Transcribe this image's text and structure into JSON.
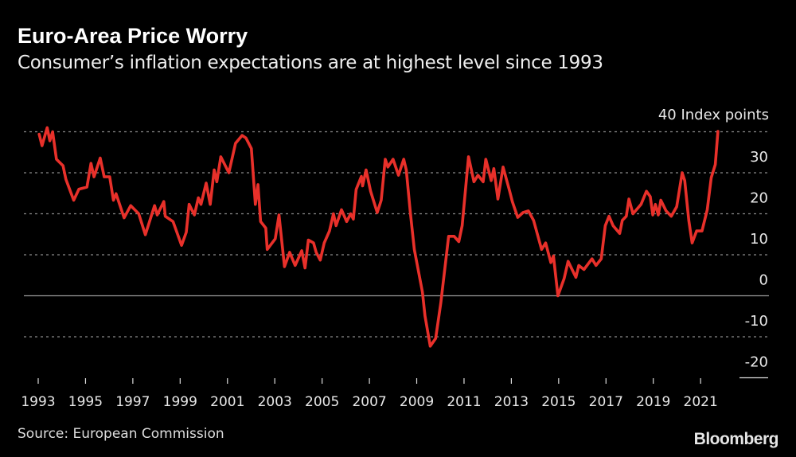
{
  "header": {
    "title": "Euro-Area Price Worry",
    "subtitle": "Consumer’s inflation expectations are at highest level since 1993"
  },
  "footer": {
    "source": "Source: European Commission",
    "brand": "Bloomberg"
  },
  "chart_data": {
    "type": "line",
    "title": "Euro-Area Price Worry",
    "subtitle": "Consumer’s inflation expectations are at highest level since 1993",
    "ylabel": "Index points",
    "unit_label": "40 Index points",
    "ylim": [
      -20,
      40
    ],
    "xlim": [
      1993,
      2021.8
    ],
    "yticks": [
      40,
      30,
      20,
      10,
      0,
      -10,
      -20
    ],
    "ytick_labels": [
      "40",
      "30",
      "20",
      "10",
      "0",
      "-10",
      "-20"
    ],
    "xticks": [
      1993,
      1995,
      1997,
      1999,
      2001,
      2003,
      2005,
      2007,
      2009,
      2011,
      2013,
      2015,
      2017,
      2019,
      2021
    ],
    "xtick_labels": [
      "1993",
      "1995",
      "1997",
      "1999",
      "2001",
      "2003",
      "2005",
      "2007",
      "2009",
      "2011",
      "2013",
      "2015",
      "2017",
      "2019",
      "2021"
    ],
    "grid": true,
    "line_color": "#e8302a",
    "x": [
      1993.04,
      1993.16,
      1993.38,
      1993.49,
      1993.61,
      1993.77,
      1994.05,
      1994.17,
      1994.5,
      1994.72,
      1995.06,
      1995.23,
      1995.36,
      1995.62,
      1995.79,
      1996.02,
      1996.18,
      1996.29,
      1996.63,
      1996.91,
      1997.25,
      1997.53,
      1997.92,
      1998.03,
      1998.31,
      1998.37,
      1998.7,
      1999.06,
      1999.26,
      1999.38,
      1999.6,
      1999.77,
      1999.88,
      2000.1,
      2000.27,
      2000.44,
      2000.55,
      2000.72,
      2001.06,
      2001.34,
      2001.62,
      2001.78,
      2002.01,
      2002.18,
      2002.29,
      2002.4,
      2002.62,
      2002.68,
      2003.02,
      2003.18,
      2003.41,
      2003.63,
      2003.86,
      2004.14,
      2004.28,
      2004.42,
      2004.64,
      2004.75,
      2004.92,
      2005.09,
      2005.31,
      2005.48,
      2005.59,
      2005.82,
      2006.04,
      2006.21,
      2006.32,
      2006.44,
      2006.66,
      2006.71,
      2006.86,
      2007.05,
      2007.33,
      2007.5,
      2007.67,
      2007.78,
      2008.0,
      2008.23,
      2008.45,
      2008.56,
      2008.73,
      2008.9,
      2009.24,
      2009.35,
      2009.57,
      2009.8,
      2010.02,
      2010.35,
      2010.58,
      2010.78,
      2010.92,
      2011.19,
      2011.42,
      2011.59,
      2011.81,
      2011.92,
      2012.15,
      2012.26,
      2012.43,
      2012.65,
      2012.93,
      2013.04,
      2013.27,
      2013.49,
      2013.72,
      2013.94,
      2014.28,
      2014.45,
      2014.67,
      2014.78,
      2014.97,
      2015.23,
      2015.4,
      2015.73,
      2015.85,
      2016.07,
      2016.41,
      2016.58,
      2016.8,
      2016.97,
      2017.13,
      2017.3,
      2017.58,
      2017.69,
      2017.86,
      2017.97,
      2018.14,
      2018.48,
      2018.71,
      2018.87,
      2018.98,
      2019.09,
      2019.21,
      2019.32,
      2019.54,
      2019.76,
      2019.99,
      2020.22,
      2020.33,
      2020.5,
      2020.64,
      2020.83,
      2021.06,
      2021.28,
      2021.45,
      2021.62,
      2021.73
    ],
    "y": [
      39.4,
      36.6,
      41.0,
      37.8,
      40.0,
      33.3,
      31.7,
      28.4,
      23.3,
      26.0,
      26.5,
      32.3,
      29.0,
      33.6,
      29.0,
      29.0,
      23.3,
      24.9,
      19.0,
      22.0,
      20.0,
      14.9,
      22.0,
      19.7,
      23.0,
      19.4,
      18.1,
      12.3,
      15.5,
      22.3,
      19.7,
      23.9,
      22.3,
      27.5,
      22.3,
      30.7,
      27.8,
      33.9,
      30.0,
      37.2,
      39.1,
      38.5,
      35.9,
      22.3,
      27.1,
      18.1,
      16.5,
      11.3,
      13.9,
      19.7,
      7.1,
      10.6,
      7.4,
      11.0,
      6.8,
      13.6,
      12.9,
      10.6,
      8.7,
      12.9,
      15.8,
      20.0,
      17.1,
      21.0,
      18.1,
      20.0,
      18.7,
      25.9,
      29.1,
      26.8,
      30.7,
      25.5,
      20.3,
      23.3,
      33.3,
      31.4,
      33.3,
      29.4,
      33.3,
      30.7,
      20.3,
      11.3,
      0.9,
      -4.9,
      -12.3,
      -10.4,
      -1.7,
      14.5,
      14.5,
      13.2,
      17.1,
      33.9,
      27.8,
      29.4,
      27.8,
      33.3,
      28.1,
      31.0,
      23.6,
      31.4,
      25.5,
      23.0,
      19.1,
      20.3,
      20.7,
      18.4,
      11.3,
      12.9,
      8.1,
      9.7,
      0.0,
      4.2,
      8.4,
      4.5,
      7.4,
      6.4,
      9.0,
      7.4,
      9.0,
      17.1,
      19.4,
      17.1,
      15.2,
      18.4,
      19.4,
      23.6,
      20.0,
      22.3,
      25.5,
      24.2,
      19.7,
      22.3,
      19.7,
      23.3,
      20.7,
      19.4,
      21.7,
      30.0,
      28.1,
      18.4,
      12.9,
      15.8,
      15.8,
      21.0,
      28.8,
      32.0,
      40.1
    ]
  }
}
